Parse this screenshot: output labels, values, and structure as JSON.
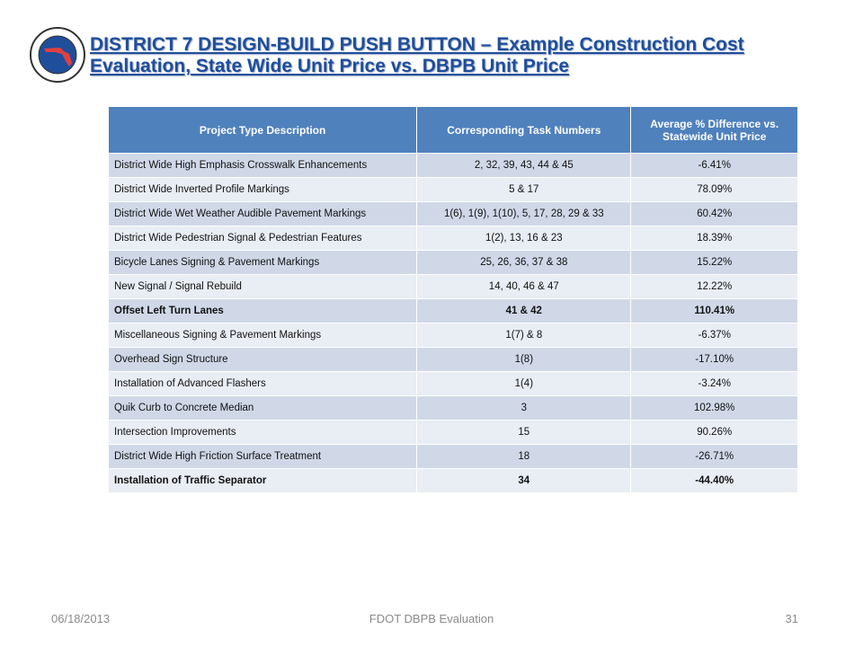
{
  "header": {
    "title": "DISTRICT 7 DESIGN-BUILD PUSH BUTTON –  Example Construction Cost Evaluation, State Wide Unit Price vs. DBPB Unit Price"
  },
  "table": {
    "columns": [
      "Project Type Description",
      "Corresponding Task Numbers",
      "Average % Difference vs. Statewide Unit Price"
    ],
    "rows": [
      {
        "cells": [
          "District Wide High Emphasis Crosswalk Enhancements",
          "2, 32, 39, 43, 44 & 45",
          "-6.41%"
        ],
        "bold": false
      },
      {
        "cells": [
          "District Wide Inverted Profile Markings",
          "5 & 17",
          "78.09%"
        ],
        "bold": false
      },
      {
        "cells": [
          "District Wide Wet Weather Audible Pavement Markings",
          "1(6), 1(9), 1(10), 5, 17, 28, 29 & 33",
          "60.42%"
        ],
        "bold": false
      },
      {
        "cells": [
          "District Wide Pedestrian Signal & Pedestrian Features",
          "1(2), 13, 16 & 23",
          "18.39%"
        ],
        "bold": false
      },
      {
        "cells": [
          "Bicycle Lanes Signing & Pavement Markings",
          "25, 26, 36, 37 & 38",
          "15.22%"
        ],
        "bold": false
      },
      {
        "cells": [
          "New Signal / Signal Rebuild",
          "14, 40, 46 & 47",
          "12.22%"
        ],
        "bold": false
      },
      {
        "cells": [
          "Offset Left Turn Lanes",
          "41 & 42",
          "110.41%"
        ],
        "bold": true
      },
      {
        "cells": [
          "Miscellaneous Signing & Pavement Markings",
          "1(7) & 8",
          "-6.37%"
        ],
        "bold": false
      },
      {
        "cells": [
          "Overhead Sign Structure",
          "1(8)",
          "-17.10%"
        ],
        "bold": false
      },
      {
        "cells": [
          "Installation of Advanced Flashers",
          "1(4)",
          "-3.24%"
        ],
        "bold": false
      },
      {
        "cells": [
          "Quik Curb to Concrete Median",
          "3",
          "102.98%"
        ],
        "bold": false
      },
      {
        "cells": [
          "Intersection Improvements",
          "15",
          "90.26%"
        ],
        "bold": false
      },
      {
        "cells": [
          "District Wide High Friction Surface Treatment",
          "18",
          "-26.71%"
        ],
        "bold": false
      },
      {
        "cells": [
          "Installation of Traffic Separator",
          "34",
          "-44.40%"
        ],
        "bold": true
      }
    ]
  },
  "footer": {
    "date": "06/18/2013",
    "center": "FDOT DBPB Evaluation",
    "page": "31"
  }
}
